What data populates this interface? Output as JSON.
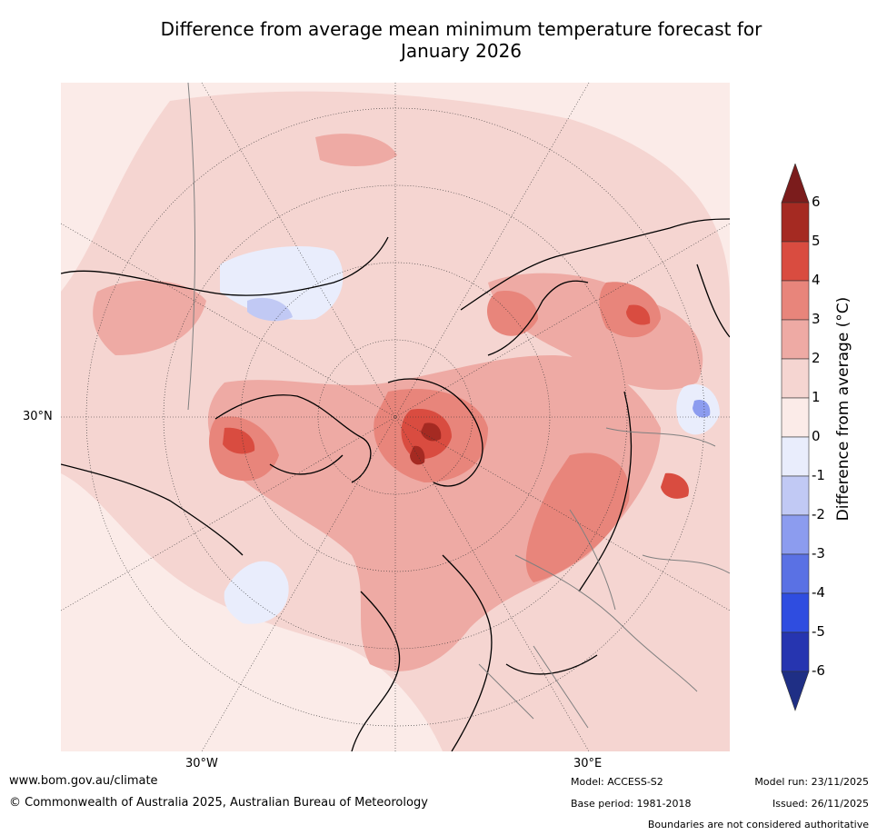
{
  "title_line1": "Difference from average mean minimum temperature forecast for",
  "title_line2": "January 2026",
  "map": {
    "lat_label": "30°N",
    "lon_label_west": "30°W",
    "lon_label_east": "30°E",
    "background_color": "#fbebe8",
    "land_outline_color": "#000000",
    "border_color": "#808080"
  },
  "colorbar": {
    "label": "Difference from average (°C)",
    "ticks": [
      "6",
      "5",
      "4",
      "3",
      "2",
      "1",
      "0",
      "-1",
      "-2",
      "-3",
      "-4",
      "-5",
      "-6"
    ],
    "colors": [
      "#7b1c1c",
      "#a52a22",
      "#d94c40",
      "#e8857b",
      "#eeaaa4",
      "#f5d5d1",
      "#fbebe8",
      "#e9edfc",
      "#c1c9f4",
      "#8c9cef",
      "#5a71e4",
      "#2f4de0",
      "#2635b0",
      "#1f2f85"
    ]
  },
  "footer": {
    "website": "www.bom.gov.au/climate",
    "copyright": "© Commonwealth of Australia 2025, Australian Bureau of Meteorology",
    "model": "Model: ACCESS-S2",
    "model_run": "Model run: 23/11/2025",
    "base_period": "Base period: 1981-2018",
    "issued": "Issued: 26/11/2025",
    "disclaimer": "Boundaries are not considered authoritative"
  }
}
